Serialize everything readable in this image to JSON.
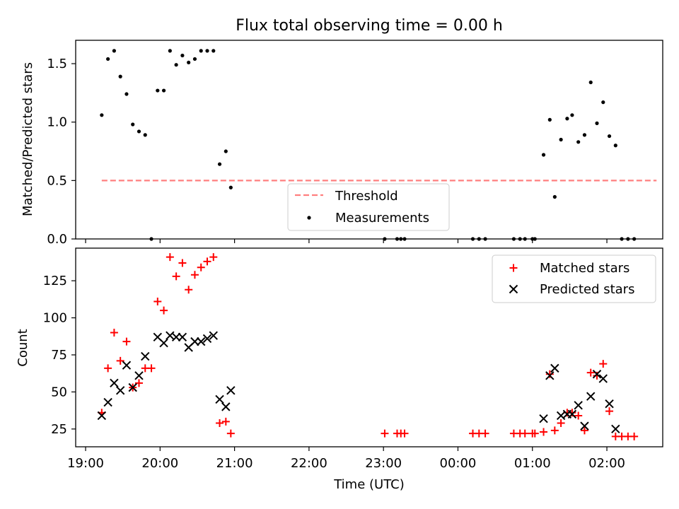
{
  "title": "Flux total observing time = 0.00 h",
  "x_tick_labels": [
    "19:00",
    "20:00",
    "21:00",
    "22:00",
    "23:00",
    "00:00",
    "01:00",
    "02:00"
  ],
  "colors": {
    "threshold": "#ff7f7f",
    "measurements": "#000000",
    "matched": "#ff0000",
    "predicted": "#000000"
  },
  "chart_data": [
    {
      "type": "scatter",
      "xlabel": "",
      "ylabel": "Matched/Predicted stars",
      "x_unit": "time (UTC)",
      "xlim": [
        "18:52",
        "02:45"
      ],
      "ylim": [
        0,
        1.7
      ],
      "yticks": [
        0.0,
        0.5,
        1.0,
        1.5
      ],
      "ytick_labels": [
        "0.0",
        "0.5",
        "1.0",
        "1.5"
      ],
      "grid": false,
      "legend": {
        "placement": "lower-center",
        "entries": [
          "Threshold",
          "Measurements"
        ]
      },
      "threshold": {
        "name": "Threshold",
        "value": 0.5,
        "x_start": "19:13",
        "x_end": "02:40",
        "style": "dashed"
      },
      "series": [
        {
          "name": "Measurements",
          "points": [
            [
              "19:13",
              1.06
            ],
            [
              "19:18",
              1.54
            ],
            [
              "19:23",
              1.61
            ],
            [
              "19:28",
              1.39
            ],
            [
              "19:33",
              1.24
            ],
            [
              "19:38",
              0.98
            ],
            [
              "19:43",
              0.92
            ],
            [
              "19:48",
              0.89
            ],
            [
              "19:53",
              0.0
            ],
            [
              "19:58",
              1.27
            ],
            [
              "20:03",
              1.27
            ],
            [
              "20:08",
              1.61
            ],
            [
              "20:13",
              1.49
            ],
            [
              "20:18",
              1.57
            ],
            [
              "20:23",
              1.51
            ],
            [
              "20:28",
              1.54
            ],
            [
              "20:33",
              1.61
            ],
            [
              "20:38",
              1.61
            ],
            [
              "20:43",
              1.61
            ],
            [
              "20:48",
              0.64
            ],
            [
              "20:53",
              0.75
            ],
            [
              "20:57",
              0.44
            ],
            [
              "23:01",
              0.0
            ],
            [
              "23:11",
              0.0
            ],
            [
              "23:14",
              0.0
            ],
            [
              "23:17",
              0.0
            ],
            [
              "00:12",
              0.0
            ],
            [
              "00:17",
              0.0
            ],
            [
              "00:22",
              0.0
            ],
            [
              "00:45",
              0.0
            ],
            [
              "00:50",
              0.0
            ],
            [
              "00:54",
              0.0
            ],
            [
              "01:00",
              0.0
            ],
            [
              "01:02",
              0.0
            ],
            [
              "01:09",
              0.72
            ],
            [
              "01:14",
              1.02
            ],
            [
              "01:18",
              0.36
            ],
            [
              "01:23",
              0.85
            ],
            [
              "01:28",
              1.03
            ],
            [
              "01:32",
              1.06
            ],
            [
              "01:37",
              0.83
            ],
            [
              "01:42",
              0.89
            ],
            [
              "01:47",
              1.34
            ],
            [
              "01:52",
              0.99
            ],
            [
              "01:57",
              1.17
            ],
            [
              "02:02",
              0.88
            ],
            [
              "02:07",
              0.8
            ],
            [
              "02:12",
              0.0
            ],
            [
              "02:17",
              0.0
            ],
            [
              "02:22",
              0.0
            ]
          ]
        }
      ]
    },
    {
      "type": "scatter",
      "xlabel": "Time (UTC)",
      "ylabel": "Count",
      "x_unit": "time (UTC)",
      "xlim": [
        "18:52",
        "02:45"
      ],
      "ylim": [
        13,
        147
      ],
      "yticks": [
        25,
        50,
        75,
        100,
        125
      ],
      "ytick_labels": [
        "25",
        "50",
        "75",
        "100",
        "125"
      ],
      "grid": false,
      "legend": {
        "placement": "top-right",
        "entries": [
          "Matched stars",
          "Predicted stars"
        ]
      },
      "series": [
        {
          "name": "Matched stars",
          "marker": "plus",
          "points": [
            [
              "19:13",
              36
            ],
            [
              "19:18",
              66
            ],
            [
              "19:23",
              90
            ],
            [
              "19:28",
              71
            ],
            [
              "19:33",
              84
            ],
            [
              "19:38",
              53
            ],
            [
              "19:43",
              56
            ],
            [
              "19:48",
              66
            ],
            [
              "19:53",
              66
            ],
            [
              "19:58",
              111
            ],
            [
              "20:03",
              105
            ],
            [
              "20:08",
              141
            ],
            [
              "20:13",
              128
            ],
            [
              "20:18",
              137
            ],
            [
              "20:23",
              119
            ],
            [
              "20:28",
              129
            ],
            [
              "20:33",
              134
            ],
            [
              "20:38",
              138
            ],
            [
              "20:43",
              141
            ],
            [
              "20:48",
              29
            ],
            [
              "20:53",
              30
            ],
            [
              "20:57",
              22
            ],
            [
              "23:01",
              22
            ],
            [
              "23:11",
              22
            ],
            [
              "23:14",
              22
            ],
            [
              "23:17",
              22
            ],
            [
              "00:12",
              22
            ],
            [
              "00:17",
              22
            ],
            [
              "00:22",
              22
            ],
            [
              "00:45",
              22
            ],
            [
              "00:50",
              22
            ],
            [
              "00:54",
              22
            ],
            [
              "01:00",
              22
            ],
            [
              "01:02",
              22
            ],
            [
              "01:09",
              23
            ],
            [
              "01:14",
              62
            ],
            [
              "01:18",
              24
            ],
            [
              "01:23",
              29
            ],
            [
              "01:28",
              36
            ],
            [
              "01:32",
              36
            ],
            [
              "01:37",
              34
            ],
            [
              "01:42",
              24
            ],
            [
              "01:47",
              63
            ],
            [
              "01:52",
              61
            ],
            [
              "01:57",
              69
            ],
            [
              "02:02",
              37
            ],
            [
              "02:07",
              20
            ],
            [
              "02:12",
              20
            ],
            [
              "02:17",
              20
            ],
            [
              "02:22",
              20
            ]
          ]
        },
        {
          "name": "Predicted stars",
          "marker": "x",
          "points": [
            [
              "19:13",
              34
            ],
            [
              "19:18",
              43
            ],
            [
              "19:23",
              56
            ],
            [
              "19:28",
              51
            ],
            [
              "19:33",
              68
            ],
            [
              "19:38",
              53
            ],
            [
              "19:43",
              61
            ],
            [
              "19:48",
              74
            ],
            [
              "19:58",
              87
            ],
            [
              "20:03",
              83
            ],
            [
              "20:08",
              88
            ],
            [
              "20:13",
              87
            ],
            [
              "20:18",
              87
            ],
            [
              "20:23",
              80
            ],
            [
              "20:28",
              84
            ],
            [
              "20:33",
              84
            ],
            [
              "20:38",
              86
            ],
            [
              "20:43",
              88
            ],
            [
              "20:48",
              45
            ],
            [
              "20:53",
              40
            ],
            [
              "20:57",
              51
            ],
            [
              "01:09",
              32
            ],
            [
              "01:14",
              61
            ],
            [
              "01:18",
              66
            ],
            [
              "01:23",
              34
            ],
            [
              "01:28",
              35
            ],
            [
              "01:32",
              35
            ],
            [
              "01:37",
              41
            ],
            [
              "01:42",
              27
            ],
            [
              "01:47",
              47
            ],
            [
              "01:52",
              62
            ],
            [
              "01:57",
              59
            ],
            [
              "02:02",
              42
            ],
            [
              "02:07",
              25
            ]
          ]
        }
      ]
    }
  ]
}
